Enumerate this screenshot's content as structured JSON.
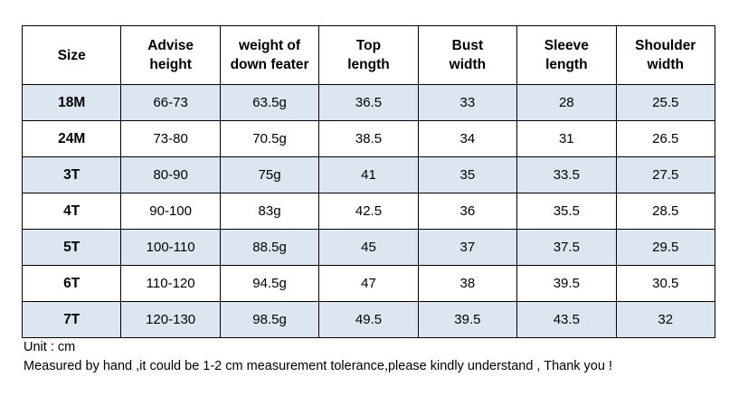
{
  "table": {
    "headers": [
      [
        "Size"
      ],
      [
        "Advise",
        "height"
      ],
      [
        "weight of",
        "down feater"
      ],
      [
        "Top",
        "length"
      ],
      [
        "Bust",
        "width"
      ],
      [
        "Sleeve",
        "length"
      ],
      [
        "Shoulder",
        "width"
      ]
    ],
    "rows": [
      [
        "18M",
        "66-73",
        "63.5g",
        "36.5",
        "33",
        "28",
        "25.5"
      ],
      [
        "24M",
        "73-80",
        "70.5g",
        "38.5",
        "34",
        "31",
        "26.5"
      ],
      [
        "3T",
        "80-90",
        "75g",
        "41",
        "35",
        "33.5",
        "27.5"
      ],
      [
        "4T",
        "90-100",
        "83g",
        "42.5",
        "36",
        "35.5",
        "28.5"
      ],
      [
        "5T",
        "100-110",
        "88.5g",
        "45",
        "37",
        "37.5",
        "29.5"
      ],
      [
        "6T",
        "110-120",
        "94.5g",
        "47",
        "38",
        "39.5",
        "30.5"
      ],
      [
        "7T",
        "120-130",
        "98.5g",
        "49.5",
        "39.5",
        "43.5",
        "32"
      ]
    ],
    "shaded_row_color": "#dce6f1"
  },
  "notes": {
    "unit": "Unit : cm",
    "measurement": "Measured by hand ,it could be 1-2 cm measurement tolerance,please kindly understand , Thank you !"
  }
}
